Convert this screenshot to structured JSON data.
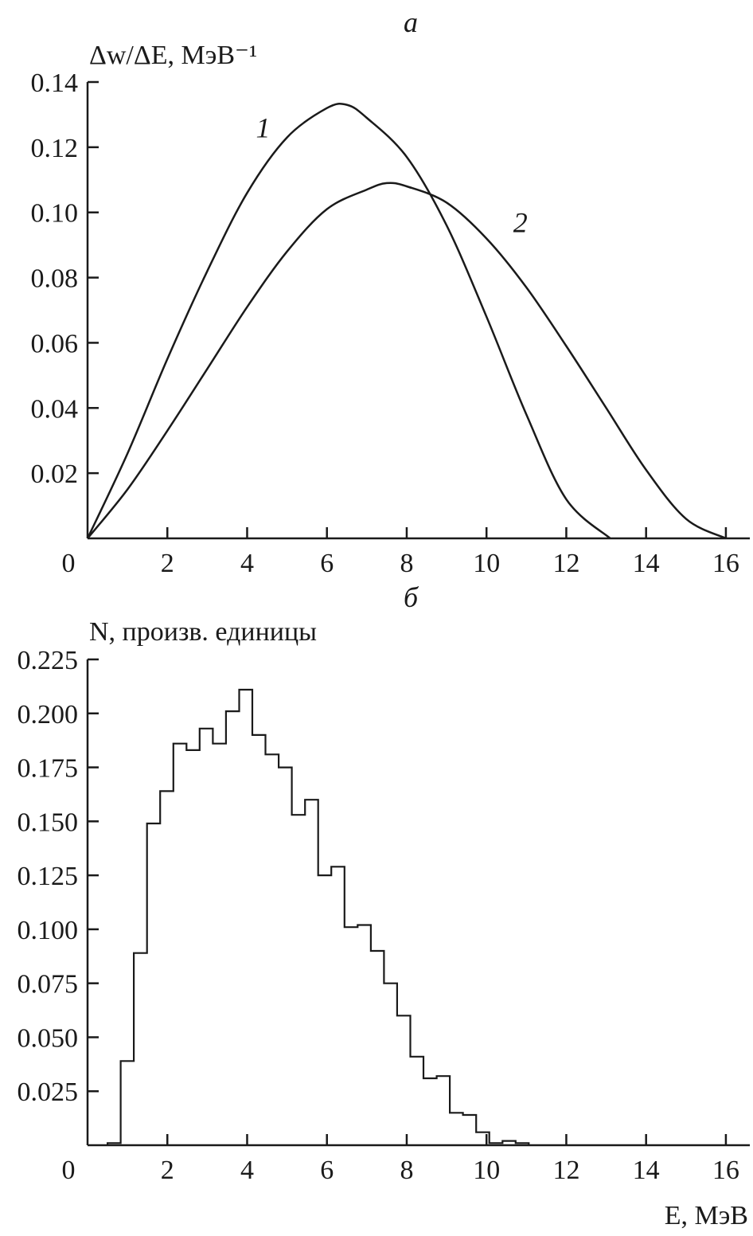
{
  "chart_data": [
    {
      "type": "line",
      "panel_label": "а",
      "ylabel": "Δw/ΔE, МэВ⁻¹",
      "xlabel": "",
      "xlim": [
        0,
        16.6
      ],
      "ylim": [
        0,
        0.14
      ],
      "x_ticks": [
        "0",
        "2",
        "4",
        "6",
        "8",
        "10",
        "12",
        "14",
        "16"
      ],
      "y_ticks": [
        "0.02",
        "0.04",
        "0.06",
        "0.08",
        "0.10",
        "0.12",
        "0.14"
      ],
      "x_tick_values": [
        0,
        2,
        4,
        6,
        8,
        10,
        12,
        14,
        16
      ],
      "y_tick_values": [
        0.02,
        0.04,
        0.06,
        0.08,
        0.1,
        0.12,
        0.14
      ],
      "series": [
        {
          "name": "1",
          "x": [
            0,
            1,
            2,
            3,
            4,
            5,
            6,
            6.5,
            7,
            8,
            9,
            10,
            11,
            12,
            13.1
          ],
          "y": [
            0,
            0.026,
            0.055,
            0.082,
            0.106,
            0.123,
            0.132,
            0.133,
            0.129,
            0.117,
            0.096,
            0.068,
            0.038,
            0.012,
            0
          ]
        },
        {
          "name": "2",
          "x": [
            0,
            1,
            2,
            3,
            4,
            5,
            6,
            7,
            7.5,
            8,
            9,
            10,
            11,
            12,
            13,
            14,
            15,
            16
          ],
          "y": [
            0,
            0.015,
            0.033,
            0.052,
            0.071,
            0.088,
            0.101,
            0.107,
            0.109,
            0.108,
            0.103,
            0.092,
            0.077,
            0.059,
            0.04,
            0.021,
            0.006,
            0
          ]
        }
      ],
      "curve_labels": [
        {
          "text": "1",
          "x": 4.4,
          "y": 0.123
        },
        {
          "text": "2",
          "x": 10.85,
          "y": 0.094
        }
      ]
    },
    {
      "type": "histogram",
      "panel_label": "б",
      "ylabel": "N, произв. единицы",
      "xlabel": "E, МэВ",
      "xlim": [
        0,
        16.6
      ],
      "ylim": [
        0,
        0.225
      ],
      "x_ticks": [
        "0",
        "2",
        "4",
        "6",
        "8",
        "10",
        "12",
        "14",
        "16"
      ],
      "y_ticks": [
        "0.025",
        "0.050",
        "0.075",
        "0.100",
        "0.125",
        "0.150",
        "0.175",
        "0.200",
        "0.225"
      ],
      "x_tick_values": [
        0,
        2,
        4,
        6,
        8,
        10,
        12,
        14,
        16
      ],
      "y_tick_values": [
        0.025,
        0.05,
        0.075,
        0.1,
        0.125,
        0.15,
        0.175,
        0.2,
        0.225
      ],
      "bin_start": 0.5,
      "bin_width": 0.33,
      "values": [
        0.001,
        0.039,
        0.089,
        0.149,
        0.164,
        0.186,
        0.183,
        0.193,
        0.186,
        0.201,
        0.211,
        0.19,
        0.181,
        0.175,
        0.153,
        0.16,
        0.125,
        0.129,
        0.101,
        0.102,
        0.09,
        0.075,
        0.06,
        0.041,
        0.031,
        0.032,
        0.015,
        0.014,
        0.006,
        0.001,
        0.002,
        0.001
      ]
    }
  ]
}
